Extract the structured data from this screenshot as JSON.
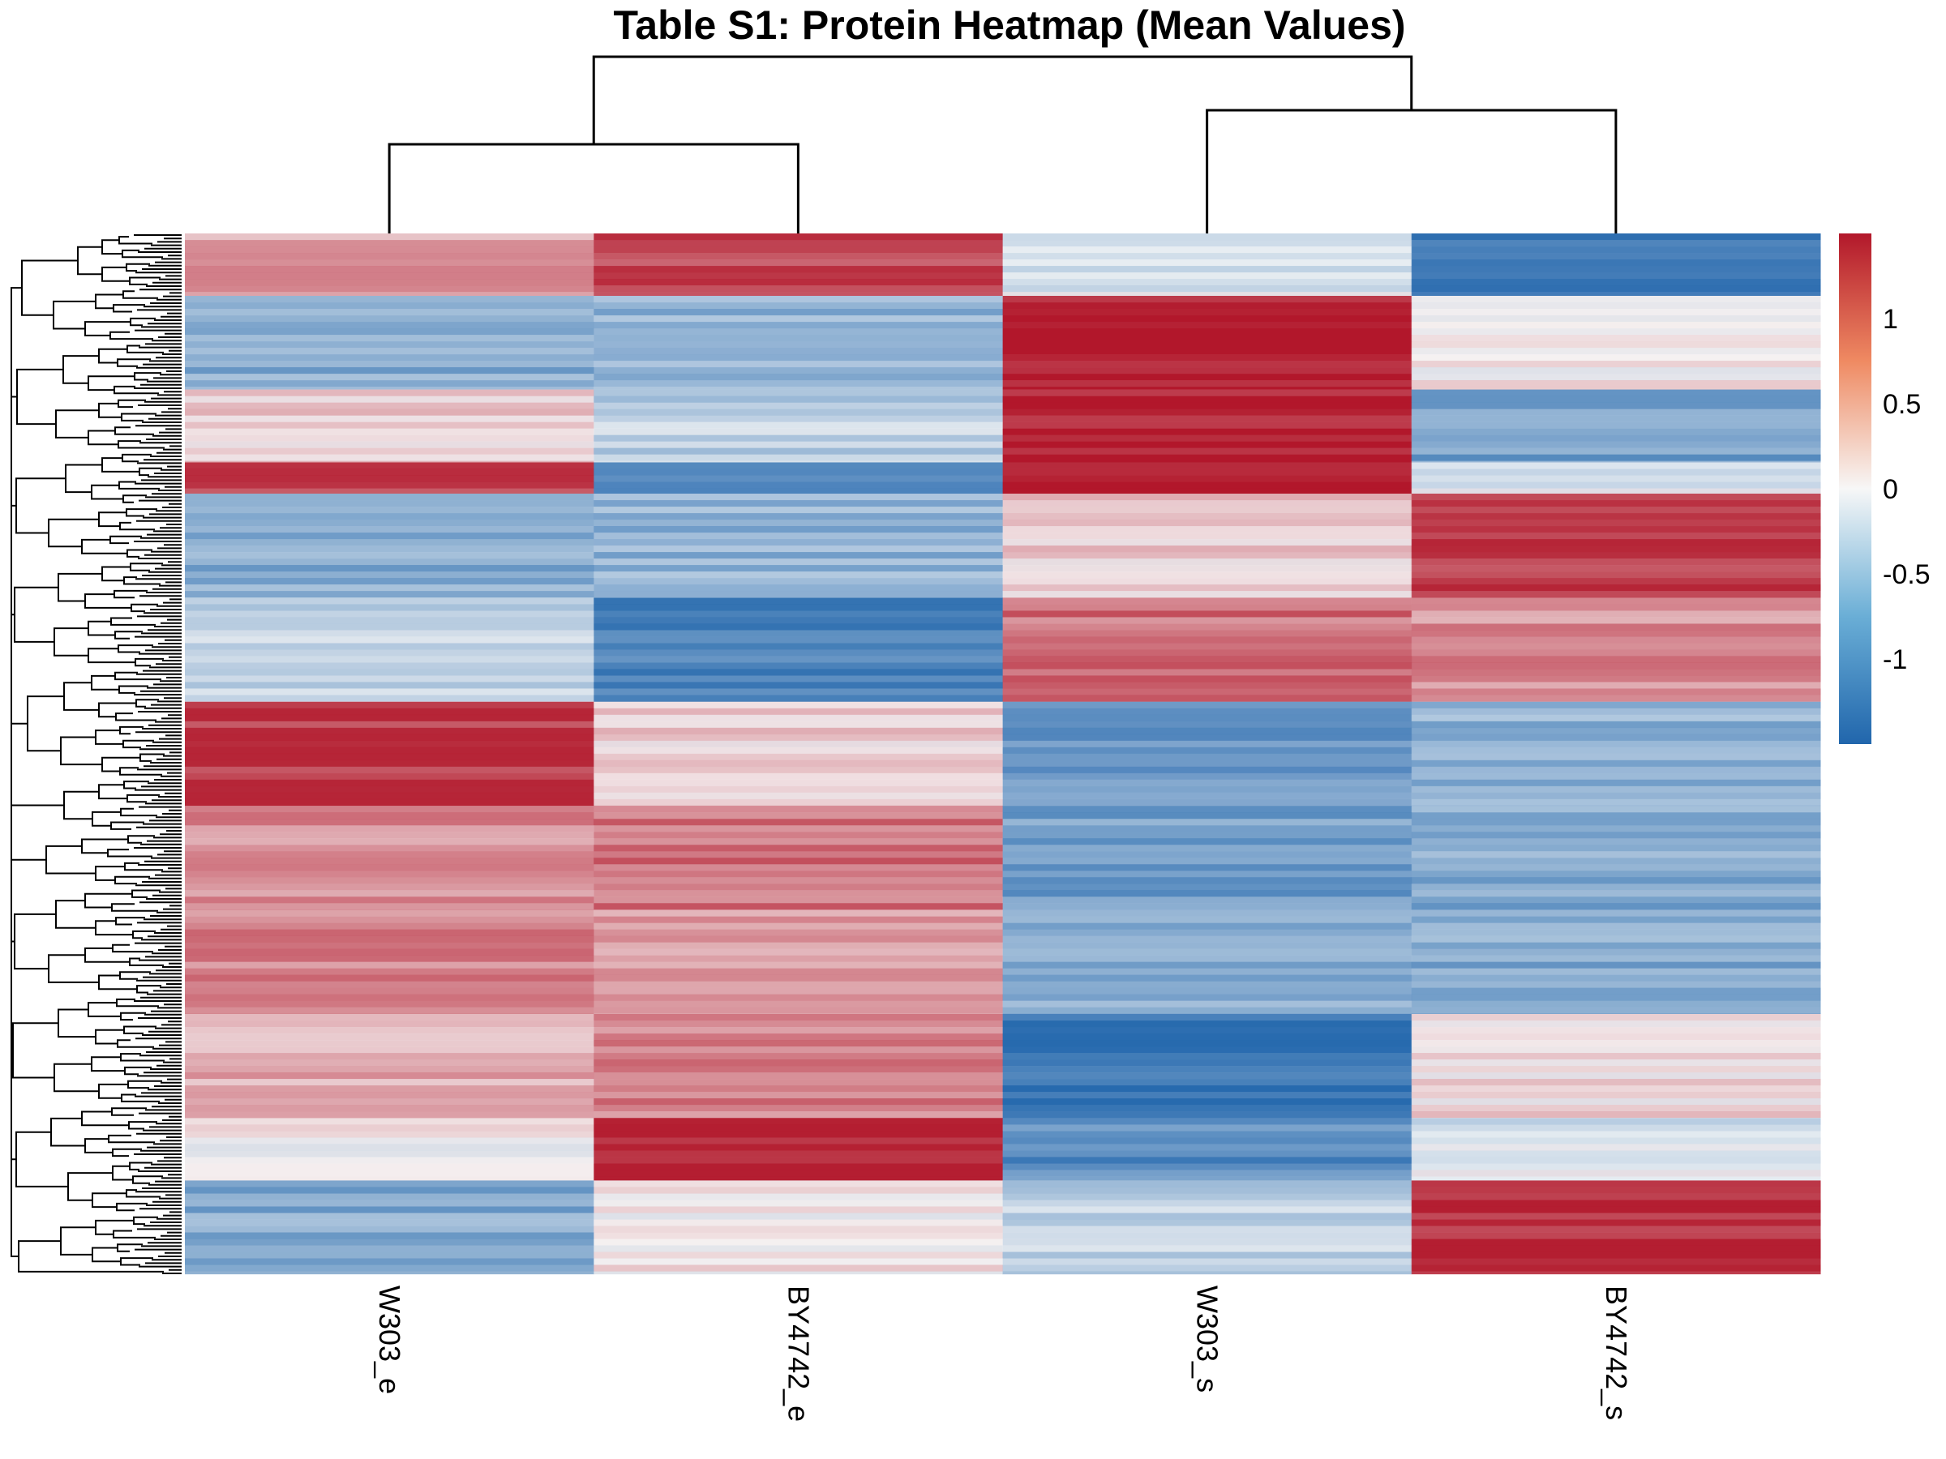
{
  "chart_data": {
    "type": "heatmap",
    "title": "Table S1: Protein Heatmap (Mean Values)",
    "columns": [
      "W303_e",
      "BY4742_e",
      "W303_s",
      "BY4742_s"
    ],
    "column_dendrogram": {
      "merges": [
        [
          "W303_e",
          "BY4742_e"
        ],
        [
          "W303_s",
          "BY4742_s"
        ],
        [
          "W303_e+BY4742_e",
          "W303_s+BY4742_s"
        ]
      ]
    },
    "row_dendrogram": "left",
    "color_scale": {
      "min": -1.5,
      "max": 1.5,
      "low_color": "#2166ac",
      "mid_color": "#f7f7f7",
      "high_color": "#b2182b",
      "ticks": [
        "1",
        "0.5",
        "0",
        "-0.5",
        "-1"
      ],
      "tick_values": [
        1,
        0.5,
        0,
        -0.5,
        -1
      ]
    },
    "row_blocks": [
      {
        "fraction": 0.06,
        "values": [
          0.6,
          1.2,
          -0.2,
          -1.3
        ]
      },
      {
        "fraction": 0.09,
        "values": [
          -0.8,
          -0.7,
          1.5,
          0.1
        ]
      },
      {
        "fraction": 0.07,
        "values": [
          0.3,
          -0.4,
          1.5,
          -0.9
        ]
      },
      {
        "fraction": 0.03,
        "values": [
          1.2,
          -1.1,
          1.5,
          -0.3
        ]
      },
      {
        "fraction": 0.1,
        "values": [
          -0.8,
          -0.7,
          0.3,
          1.3
        ]
      },
      {
        "fraction": 0.1,
        "values": [
          -0.4,
          -1.2,
          0.9,
          0.7
        ]
      },
      {
        "fraction": 0.1,
        "values": [
          1.3,
          0.3,
          -1.0,
          -0.7
        ]
      },
      {
        "fraction": 0.1,
        "values": [
          0.7,
          0.9,
          -0.9,
          -0.8
        ]
      },
      {
        "fraction": 0.1,
        "values": [
          0.8,
          0.6,
          -0.8,
          -0.8
        ]
      },
      {
        "fraction": 0.1,
        "values": [
          0.5,
          0.8,
          -1.4,
          0.2
        ]
      },
      {
        "fraction": 0.06,
        "values": [
          0.1,
          1.4,
          -1.1,
          -0.2
        ]
      },
      {
        "fraction": 0.09,
        "values": [
          -0.8,
          0.1,
          -0.4,
          1.4
        ]
      }
    ]
  }
}
